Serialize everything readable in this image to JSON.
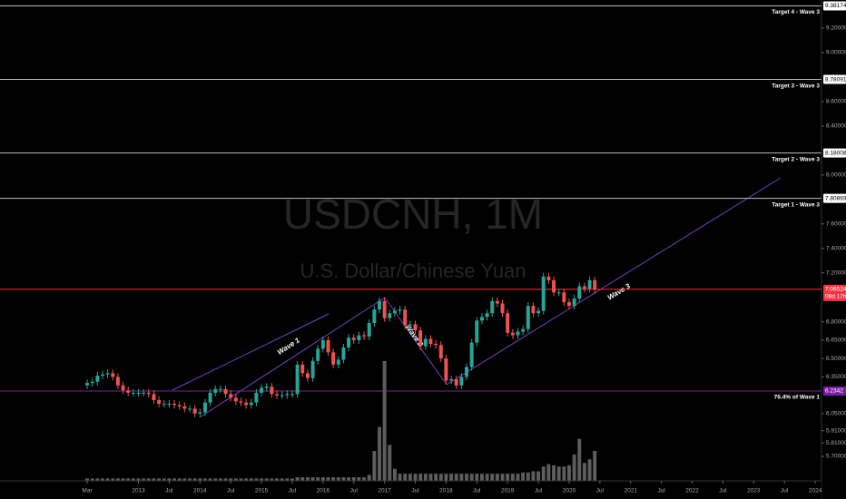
{
  "chart_data": {
    "type": "candlestick",
    "title": "USDCNH, 1M",
    "subtitle": "U.S. Dollar/Chinese Yuan",
    "x": [
      "2012-03",
      "2012-04",
      "2012-05",
      "2012-06",
      "2012-07",
      "2012-08",
      "2012-09",
      "2012-10",
      "2012-11",
      "2012-12",
      "2013-01",
      "2013-02",
      "2013-03",
      "2013-04",
      "2013-05",
      "2013-06",
      "2013-07",
      "2013-08",
      "2013-09",
      "2013-10",
      "2013-11",
      "2013-12",
      "2014-01",
      "2014-02",
      "2014-03",
      "2014-04",
      "2014-05",
      "2014-06",
      "2014-07",
      "2014-08",
      "2014-09",
      "2014-10",
      "2014-11",
      "2014-12",
      "2015-01",
      "2015-02",
      "2015-03",
      "2015-04",
      "2015-05",
      "2015-06",
      "2015-07",
      "2015-08",
      "2015-09",
      "2015-10",
      "2015-11",
      "2015-12",
      "2016-01",
      "2016-02",
      "2016-03",
      "2016-04",
      "2016-05",
      "2016-06",
      "2016-07",
      "2016-08",
      "2016-09",
      "2016-10",
      "2016-11",
      "2016-12",
      "2017-01",
      "2017-02",
      "2017-03",
      "2017-04",
      "2017-05",
      "2017-06",
      "2017-07",
      "2017-08",
      "2017-09",
      "2017-10",
      "2017-11",
      "2017-12",
      "2018-01",
      "2018-02",
      "2018-03",
      "2018-04",
      "2018-05",
      "2018-06",
      "2018-07",
      "2018-08",
      "2018-09",
      "2018-10",
      "2018-11",
      "2018-12",
      "2019-01",
      "2019-02",
      "2019-03",
      "2019-04",
      "2019-05",
      "2019-06",
      "2019-07",
      "2019-08",
      "2019-09",
      "2019-10",
      "2019-11",
      "2019-12",
      "2020-01",
      "2020-02",
      "2020-03",
      "2020-04",
      "2020-05",
      "2020-06"
    ],
    "open": [
      6.28,
      6.3,
      6.31,
      6.36,
      6.37,
      6.38,
      6.35,
      6.28,
      6.24,
      6.22,
      6.22,
      6.22,
      6.22,
      6.21,
      6.16,
      6.13,
      6.13,
      6.13,
      6.12,
      6.11,
      6.09,
      6.09,
      6.05,
      6.06,
      6.14,
      6.22,
      6.25,
      6.25,
      6.21,
      6.18,
      6.15,
      6.14,
      6.12,
      6.14,
      6.22,
      6.26,
      6.27,
      6.21,
      6.2,
      6.2,
      6.21,
      6.21,
      6.45,
      6.38,
      6.34,
      6.48,
      6.58,
      6.65,
      6.55,
      6.45,
      6.49,
      6.59,
      6.67,
      6.65,
      6.69,
      6.68,
      6.79,
      6.9,
      6.97,
      6.83,
      6.87,
      6.89,
      6.9,
      6.77,
      6.78,
      6.73,
      6.6,
      6.66,
      6.62,
      6.61,
      6.5,
      6.32,
      6.33,
      6.28,
      6.35,
      6.43,
      6.63,
      6.81,
      6.84,
      6.87,
      6.97,
      6.95,
      6.87,
      6.71,
      6.69,
      6.72,
      6.74,
      6.93,
      6.87,
      6.89,
      7.17,
      7.14,
      7.04,
      7.04,
      6.96,
      6.93,
      6.99,
      7.09,
      7.07,
      7.14
    ],
    "high": [
      6.33,
      6.34,
      6.39,
      6.4,
      6.41,
      6.41,
      6.38,
      6.31,
      6.27,
      6.25,
      6.25,
      6.25,
      6.25,
      6.24,
      6.19,
      6.16,
      6.16,
      6.16,
      6.15,
      6.14,
      6.12,
      6.12,
      6.09,
      6.17,
      6.25,
      6.28,
      6.28,
      6.28,
      6.24,
      6.21,
      6.18,
      6.17,
      6.17,
      6.25,
      6.29,
      6.3,
      6.3,
      6.24,
      6.23,
      6.24,
      6.24,
      6.48,
      6.48,
      6.41,
      6.51,
      6.61,
      6.68,
      6.68,
      6.58,
      6.52,
      6.62,
      6.7,
      6.7,
      6.72,
      6.72,
      6.82,
      6.93,
      7.0,
      7.0,
      6.9,
      6.92,
      6.93,
      6.93,
      6.81,
      6.81,
      6.76,
      6.69,
      6.69,
      6.65,
      6.64,
      6.53,
      6.36,
      6.36,
      6.38,
      6.46,
      6.66,
      6.84,
      6.87,
      6.9,
      7.0,
      7.0,
      6.98,
      6.9,
      6.74,
      6.75,
      6.77,
      6.96,
      6.96,
      6.92,
      7.2,
      7.2,
      7.17,
      7.07,
      7.07,
      6.99,
      7.02,
      7.12,
      7.12,
      7.17,
      7.17
    ],
    "low": [
      6.25,
      6.27,
      6.28,
      6.33,
      6.34,
      6.32,
      6.25,
      6.21,
      6.19,
      6.19,
      6.19,
      6.19,
      6.18,
      6.13,
      6.1,
      6.1,
      6.1,
      6.09,
      6.08,
      6.06,
      6.06,
      6.02,
      6.02,
      6.03,
      6.11,
      6.19,
      6.22,
      6.18,
      6.15,
      6.12,
      6.11,
      6.09,
      6.09,
      6.11,
      6.19,
      6.23,
      6.18,
      6.17,
      6.17,
      6.17,
      6.18,
      6.18,
      6.35,
      6.31,
      6.31,
      6.45,
      6.55,
      6.52,
      6.42,
      6.42,
      6.46,
      6.56,
      6.62,
      6.62,
      6.65,
      6.65,
      6.76,
      6.87,
      6.8,
      6.8,
      6.84,
      6.86,
      6.74,
      6.74,
      6.7,
      6.57,
      6.57,
      6.59,
      6.58,
      6.47,
      6.29,
      6.29,
      6.25,
      6.25,
      6.32,
      6.4,
      6.6,
      6.78,
      6.81,
      6.84,
      6.92,
      6.84,
      6.68,
      6.66,
      6.66,
      6.69,
      6.71,
      6.84,
      6.84,
      6.86,
      7.11,
      7.01,
      7.01,
      6.93,
      6.9,
      6.9,
      6.96,
      7.04,
      7.04,
      7.03
    ],
    "close": [
      6.3,
      6.31,
      6.36,
      6.37,
      6.38,
      6.35,
      6.28,
      6.24,
      6.22,
      6.22,
      6.22,
      6.22,
      6.21,
      6.16,
      6.13,
      6.13,
      6.13,
      6.12,
      6.11,
      6.09,
      6.09,
      6.05,
      6.06,
      6.14,
      6.22,
      6.25,
      6.25,
      6.21,
      6.18,
      6.15,
      6.14,
      6.12,
      6.14,
      6.22,
      6.26,
      6.27,
      6.21,
      6.2,
      6.2,
      6.21,
      6.21,
      6.45,
      6.38,
      6.34,
      6.48,
      6.58,
      6.65,
      6.55,
      6.45,
      6.49,
      6.59,
      6.67,
      6.65,
      6.69,
      6.68,
      6.79,
      6.9,
      6.97,
      6.83,
      6.87,
      6.89,
      6.9,
      6.77,
      6.78,
      6.73,
      6.6,
      6.66,
      6.62,
      6.61,
      6.5,
      6.32,
      6.33,
      6.28,
      6.35,
      6.43,
      6.63,
      6.81,
      6.84,
      6.87,
      6.97,
      6.95,
      6.87,
      6.71,
      6.69,
      6.72,
      6.74,
      6.93,
      6.87,
      6.89,
      7.17,
      7.14,
      7.04,
      7.04,
      6.96,
      6.93,
      6.99,
      7.09,
      7.07,
      7.14,
      7.06524
    ],
    "volume": [
      2,
      2,
      2,
      2,
      2,
      2,
      2,
      2,
      2,
      2,
      2,
      2,
      2,
      2,
      2,
      2,
      2,
      2,
      2,
      2,
      2,
      2,
      2,
      2,
      2,
      2,
      2,
      2,
      2,
      2,
      2,
      2,
      2,
      2,
      2,
      2,
      2,
      2,
      2,
      2,
      2,
      3,
      3,
      3,
      3,
      3,
      3,
      3,
      3,
      3,
      3,
      3,
      3,
      3,
      3,
      5,
      25,
      45,
      100,
      30,
      10,
      6,
      6,
      6,
      6,
      6,
      6,
      6,
      6,
      6,
      6,
      6,
      6,
      6,
      6,
      6,
      6,
      6,
      6,
      6,
      6,
      6,
      6,
      6,
      6,
      7,
      7,
      8,
      8,
      12,
      14,
      13,
      12,
      12,
      13,
      22,
      35,
      15,
      18,
      25
    ],
    "up_color": "#26a69a",
    "down_color": "#ef5350",
    "volume_color": "#5d5d5d",
    "xlim": [
      "2010-10",
      "2024-07"
    ],
    "xticks": [
      {
        "value": "2012-03",
        "label": "Mar"
      },
      {
        "value": "2013-01",
        "label": "2013"
      },
      {
        "value": "2013-07",
        "label": "Jul"
      },
      {
        "value": "2014-01",
        "label": "2014"
      },
      {
        "value": "2014-07",
        "label": "Jul"
      },
      {
        "value": "2015-01",
        "label": "2015"
      },
      {
        "value": "2015-07",
        "label": "Jul"
      },
      {
        "value": "2016-01",
        "label": "2016"
      },
      {
        "value": "2016-07",
        "label": "Jul"
      },
      {
        "value": "2017-01",
        "label": "2017"
      },
      {
        "value": "2017-07",
        "label": "Jul"
      },
      {
        "value": "2018-01",
        "label": "2018"
      },
      {
        "value": "2018-07",
        "label": "Jul"
      },
      {
        "value": "2019-01",
        "label": "2019"
      },
      {
        "value": "2019-07",
        "label": "Jul"
      },
      {
        "value": "2020-01",
        "label": "2020"
      },
      {
        "value": "2020-07",
        "label": "Jul"
      },
      {
        "value": "2021-01",
        "label": "2021"
      },
      {
        "value": "2021-07",
        "label": "Jul"
      },
      {
        "value": "2022-01",
        "label": "2022"
      },
      {
        "value": "2022-07",
        "label": "Jul"
      },
      {
        "value": "2023-01",
        "label": "2023"
      },
      {
        "value": "2023-07",
        "label": "Jul"
      },
      {
        "value": "2024-01",
        "label": "2024"
      }
    ],
    "ylim": [
      5.5,
      9.43
    ],
    "yticks": [
      {
        "value": 9.2,
        "label": "9.20000"
      },
      {
        "value": 9.0,
        "label": "9.00000"
      },
      {
        "value": 8.6,
        "label": "8.60000"
      },
      {
        "value": 8.4,
        "label": "8.40000"
      },
      {
        "value": 8.0,
        "label": "8.00000"
      },
      {
        "value": 7.6,
        "label": "7.60000"
      },
      {
        "value": 7.4,
        "label": "7.40000"
      },
      {
        "value": 7.2,
        "label": "7.20000"
      },
      {
        "value": 6.8,
        "label": "6.80000"
      },
      {
        "value": 6.65,
        "label": "6.65000"
      },
      {
        "value": 6.5,
        "label": "6.50000"
      },
      {
        "value": 6.35,
        "label": "6.35000"
      },
      {
        "value": 6.05,
        "label": "6.05000"
      },
      {
        "value": 5.91,
        "label": "5.91000"
      },
      {
        "value": 5.81,
        "label": "5.81000"
      },
      {
        "value": 5.7,
        "label": "5.70000"
      }
    ],
    "levels": [
      {
        "name": "Target 4 - Wave 3",
        "value": 9.38174,
        "color": "#bdbdbd"
      },
      {
        "name": "Target 3 - Wave 3",
        "value": 8.78091,
        "color": "#bdbdbd"
      },
      {
        "name": "Target 2 - Wave 3",
        "value": 8.18008,
        "color": "#bdbdbd"
      },
      {
        "name": "Target 1 - Wave 3",
        "value": 7.80869,
        "color": "#bdbdbd"
      },
      {
        "name": "76.4% of Wave 1",
        "value": 6.2342,
        "color": "#7b1fa2"
      }
    ],
    "last_price": 7.06524,
    "last_color": "#f23645",
    "countdown": "08d 17h",
    "annotations": [
      "Wave 1",
      "Wave 2",
      "Wave 3"
    ]
  }
}
